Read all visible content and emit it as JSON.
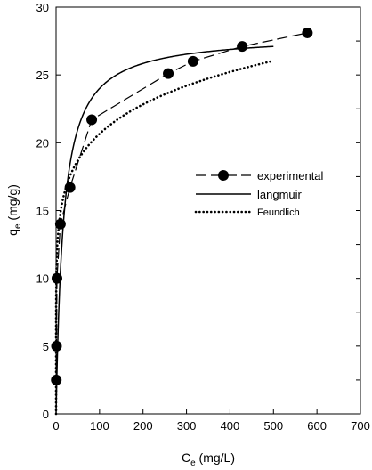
{
  "chart_data": {
    "type": "line",
    "title": "",
    "xlabel": {
      "main": "C",
      "sub": "e",
      "unit": " (mg/L)"
    },
    "ylabel": {
      "main": "q",
      "sub": "e",
      "unit": " (mg/g)"
    },
    "xlim": [
      0,
      700
    ],
    "ylim": [
      0,
      30
    ],
    "xticks": [
      0,
      100,
      200,
      300,
      400,
      500,
      600,
      700
    ],
    "yticks": [
      0,
      5,
      10,
      15,
      20,
      25,
      30
    ],
    "grid": false,
    "legend_position": "right-middle",
    "series": [
      {
        "name": "experimental",
        "style": "dashed-with-markers",
        "color": "#000000",
        "x": [
          0.5,
          1,
          2,
          10,
          32,
          82,
          258,
          315,
          428,
          578
        ],
        "y": [
          2.5,
          5,
          10,
          14,
          16.7,
          21.7,
          25.1,
          26,
          27.1,
          28.1
        ]
      },
      {
        "name": "langmuir",
        "style": "solid",
        "color": "#000000",
        "model": "langmuir",
        "params": {
          "qmax": 28.0,
          "KL": 0.06
        },
        "x_range": [
          0,
          500
        ]
      },
      {
        "name": "Feundlich",
        "style": "dotted",
        "color": "#000000",
        "model": "freundlich",
        "params": {
          "KF": 10.65,
          "n": 6.95
        },
        "x_range": [
          0,
          500
        ]
      }
    ]
  }
}
